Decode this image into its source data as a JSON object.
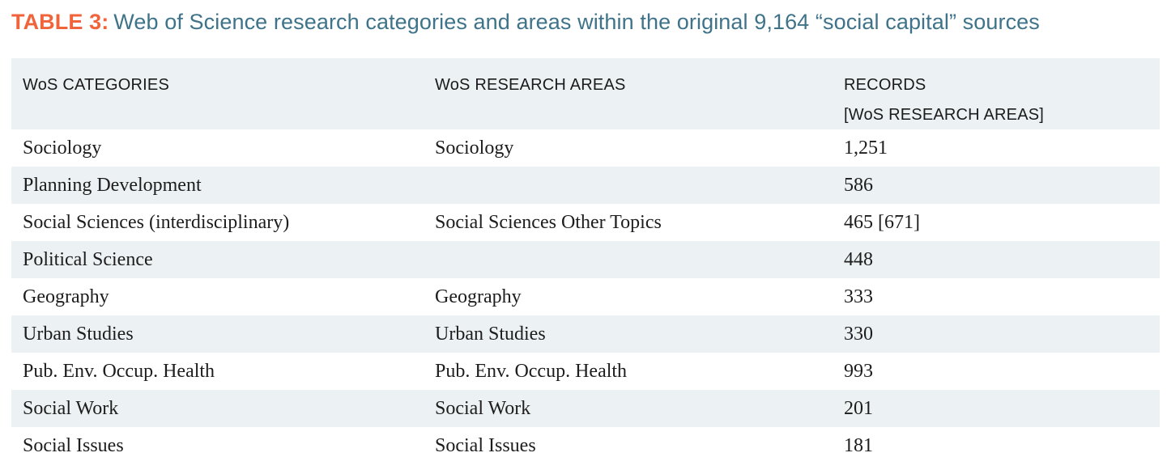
{
  "title": {
    "label": "TABLE 3:",
    "text": "Web of Science research categories and areas within the original 9,164 “social capital” sources"
  },
  "table": {
    "columns": [
      {
        "header": "WoS CATEGORIES"
      },
      {
        "header": "WoS RESEARCH AREAS"
      },
      {
        "header": "RECORDS",
        "subheader": "[WoS RESEARCH AREAS]"
      }
    ],
    "rows": [
      {
        "category": "Sociology",
        "research_area": "Sociology",
        "records": "1,251"
      },
      {
        "category": "Planning Development",
        "research_area": "",
        "records": "586"
      },
      {
        "category": "Social Sciences (interdisciplinary)",
        "research_area": "Social Sciences Other Topics",
        "records": "465 [671]"
      },
      {
        "category": "Political Science",
        "research_area": "",
        "records": "448"
      },
      {
        "category": "Geography",
        "research_area": "Geography",
        "records": "333"
      },
      {
        "category": "Urban Studies",
        "research_area": "Urban Studies",
        "records": "330"
      },
      {
        "category": "Pub. Env. Occup. Health",
        "research_area": "Pub. Env. Occup. Health",
        "records": "993"
      },
      {
        "category": "Social Work",
        "research_area": "Social Work",
        "records": "201"
      },
      {
        "category": "Social Issues",
        "research_area": "Social Issues",
        "records": "181"
      }
    ]
  },
  "colors": {
    "accent_orange": "#f0643c",
    "title_teal": "#3f7389",
    "stripe_blue": "#ecf2f4",
    "text_dark": "#1d1d1d"
  }
}
